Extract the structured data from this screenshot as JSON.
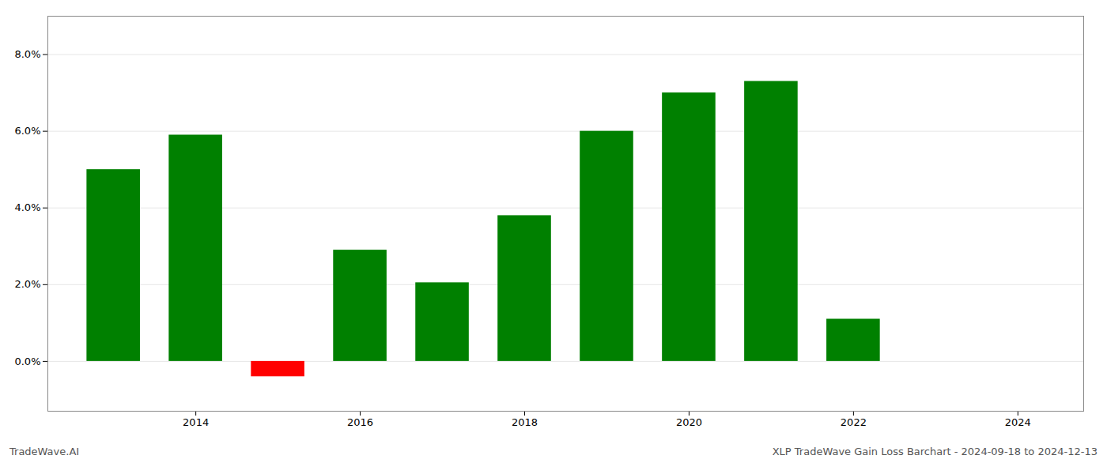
{
  "chart_data": {
    "type": "bar",
    "x": [
      2013,
      2014,
      2015,
      2016,
      2017,
      2018,
      2019,
      2020,
      2021,
      2022
    ],
    "values": [
      0.05,
      0.059,
      -0.004,
      0.029,
      0.0205,
      0.038,
      0.06,
      0.07,
      0.073,
      0.011
    ],
    "colors": [
      "#008000",
      "#008000",
      "#ff0000",
      "#008000",
      "#008000",
      "#008000",
      "#008000",
      "#008000",
      "#008000",
      "#008000"
    ],
    "xlim": [
      2012.2,
      2024.8
    ],
    "xticks": [
      2014,
      2016,
      2018,
      2020,
      2022,
      2024
    ],
    "ylim": [
      -0.013,
      0.09
    ],
    "yticks": [
      {
        "value": 0.0,
        "label": "0.0%"
      },
      {
        "value": 0.02,
        "label": "2.0%"
      },
      {
        "value": 0.04,
        "label": "4.0%"
      },
      {
        "value": 0.06,
        "label": "6.0%"
      },
      {
        "value": 0.08,
        "label": "8.0%"
      }
    ],
    "grid": true,
    "annotations": [
      "TradeWave.AI",
      "XLP TradeWave Gain Loss Barchart - 2024-09-18 to 2024-12-13"
    ]
  }
}
